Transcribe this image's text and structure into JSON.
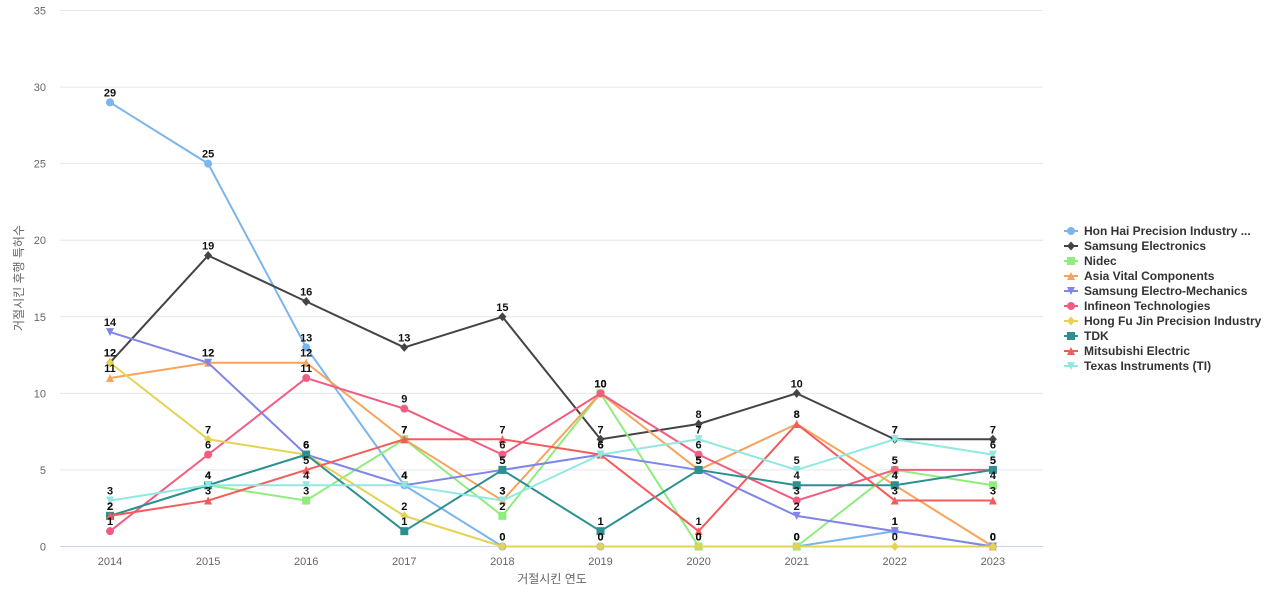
{
  "chart_data": {
    "type": "line",
    "title": "",
    "xlabel": "거절시킨 연도",
    "ylabel": "거절시킨 후행 특허수",
    "x": [
      "2014",
      "2015",
      "2016",
      "2017",
      "2018",
      "2019",
      "2020",
      "2021",
      "2022",
      "2023"
    ],
    "ylim": [
      0,
      35
    ],
    "yticks": [
      0,
      5,
      10,
      15,
      20,
      25,
      30,
      35
    ],
    "grid": true,
    "legend_position": "right",
    "series": [
      {
        "name": "Hon Hai Precision Industry ...",
        "color": "#7cb5ec",
        "marker": "circle",
        "values": [
          29,
          25,
          13,
          4,
          0,
          0,
          0,
          0,
          1,
          0
        ]
      },
      {
        "name": "Samsung Electronics",
        "color": "#434348",
        "marker": "diamond",
        "values": [
          12,
          19,
          16,
          13,
          15,
          7,
          8,
          10,
          7,
          7
        ]
      },
      {
        "name": "Nidec",
        "color": "#90ed7d",
        "marker": "square",
        "values": [
          2,
          4,
          3,
          7,
          2,
          10,
          0,
          0,
          5,
          4
        ]
      },
      {
        "name": "Asia Vital Components",
        "color": "#f7a35c",
        "marker": "triangle",
        "values": [
          11,
          12,
          12,
          7,
          3,
          10,
          5,
          8,
          4,
          0
        ]
      },
      {
        "name": "Samsung Electro-Mechanics",
        "color": "#8085e9",
        "marker": "triangle-down",
        "values": [
          14,
          12,
          6,
          4,
          5,
          6,
          5,
          2,
          1,
          0
        ]
      },
      {
        "name": "Infineon Technologies",
        "color": "#f15c80",
        "marker": "circle",
        "values": [
          1,
          6,
          11,
          9,
          6,
          10,
          6,
          3,
          5,
          5
        ]
      },
      {
        "name": "Hong Fu Jin Precision Industry",
        "color": "#e4d354",
        "marker": "diamond",
        "values": [
          12,
          7,
          6,
          2,
          0,
          0,
          0,
          0,
          0,
          0
        ]
      },
      {
        "name": "TDK",
        "color": "#2b908f",
        "marker": "square",
        "values": [
          2,
          4,
          6,
          1,
          5,
          1,
          5,
          4,
          4,
          5
        ]
      },
      {
        "name": "Mitsubishi Electric",
        "color": "#f45b5b",
        "marker": "triangle",
        "values": [
          2,
          3,
          5,
          7,
          7,
          6,
          1,
          8,
          3,
          3
        ]
      },
      {
        "name": "Texas Instruments (TI)",
        "color": "#91e8e1",
        "marker": "triangle-down",
        "values": [
          3,
          4,
          4,
          4,
          3,
          6,
          7,
          5,
          7,
          6
        ]
      }
    ]
  }
}
